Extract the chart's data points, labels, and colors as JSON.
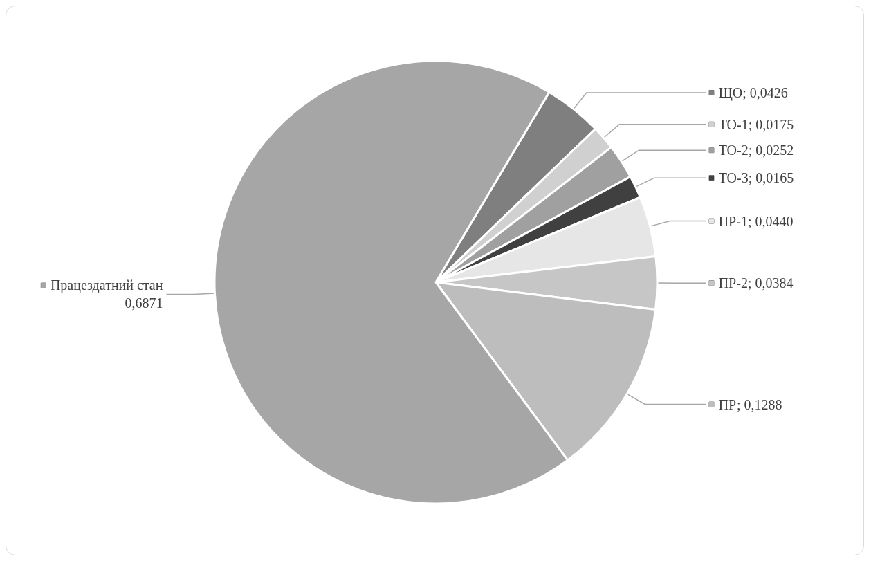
{
  "chart_data": {
    "type": "pie",
    "categories": [
      "ЩО",
      "ТО-1",
      "ТО-2",
      "ТО-3",
      "ПР-1",
      "ПР-2",
      "ПР",
      "Працездатний стан"
    ],
    "values": [
      0.0426,
      0.0175,
      0.0252,
      0.0165,
      0.044,
      0.0384,
      0.1288,
      0.6871
    ],
    "value_labels": [
      "0,0426",
      "0,0175",
      "0,0252",
      "0,0165",
      "0,0440",
      "0,0384",
      "0,1288",
      "0,6871"
    ],
    "colors": [
      "#7f7f7f",
      "#d0d0d0",
      "#a0a0a0",
      "#404040",
      "#e6e6e6",
      "#c6c6c6",
      "#bdbdbd",
      "#a6a6a6"
    ],
    "legend": "right"
  }
}
